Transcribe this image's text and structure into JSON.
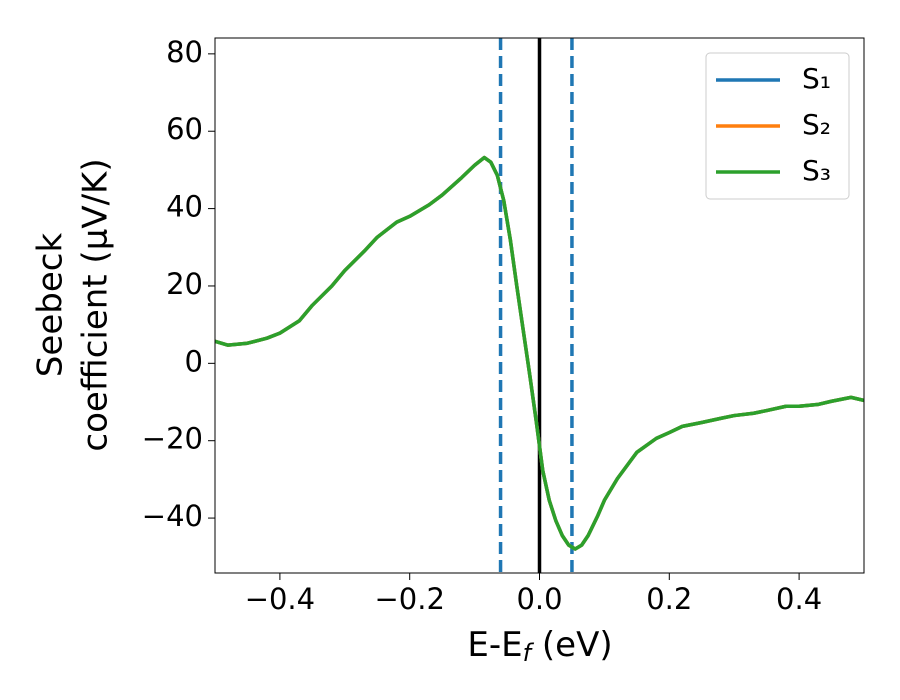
{
  "chart_data": {
    "type": "line",
    "xlabel": [
      "E-E",
      "f",
      " (eV)"
    ],
    "ylabel": [
      "Seebeck",
      "coefficient  (μV/K)"
    ],
    "x": [
      -0.5,
      -0.48,
      -0.45,
      -0.42,
      -0.4,
      -0.37,
      -0.35,
      -0.32,
      -0.3,
      -0.27,
      -0.25,
      -0.22,
      -0.2,
      -0.17,
      -0.15,
      -0.12,
      -0.1,
      -0.085,
      -0.075,
      -0.065,
      -0.055,
      -0.045,
      -0.035,
      -0.025,
      -0.015,
      -0.005,
      0.005,
      0.015,
      0.025,
      0.035,
      0.045,
      0.055,
      0.065,
      0.075,
      0.09,
      0.1,
      0.12,
      0.15,
      0.18,
      0.2,
      0.22,
      0.25,
      0.28,
      0.3,
      0.33,
      0.35,
      0.38,
      0.4,
      0.43,
      0.45,
      0.48,
      0.5
    ],
    "series": [
      {
        "name": "S₁",
        "color": "#1f77b4",
        "values": [
          5.7,
          4.7,
          5.2,
          6.5,
          7.8,
          11,
          15,
          20,
          24,
          29,
          32.6,
          36.5,
          38,
          41,
          43.5,
          48,
          51.2,
          53.2,
          52,
          48.6,
          42,
          32,
          20,
          8.5,
          -3,
          -15,
          -27.7,
          -35.4,
          -40.6,
          -44.5,
          -47,
          -48,
          -47,
          -44.5,
          -39.3,
          -35.4,
          -29.8,
          -23,
          -19.4,
          -17.9,
          -16.3,
          -15.3,
          -14.2,
          -13.5,
          -12.9,
          -12.2,
          -11.1,
          -11.1,
          -10.6,
          -9.8,
          -8.8,
          -9.6
        ]
      },
      {
        "name": "S₂",
        "color": "#ff7f0e",
        "values": [
          5.7,
          4.7,
          5.2,
          6.5,
          7.8,
          11,
          15,
          20,
          24,
          29,
          32.6,
          36.5,
          38,
          41,
          43.5,
          48,
          51.2,
          53.2,
          52,
          48.6,
          42,
          32,
          20,
          8.5,
          -3,
          -15,
          -27.7,
          -35.4,
          -40.6,
          -44.5,
          -47,
          -48,
          -47,
          -44.5,
          -39.3,
          -35.4,
          -29.8,
          -23,
          -19.4,
          -17.9,
          -16.3,
          -15.3,
          -14.2,
          -13.5,
          -12.9,
          -12.2,
          -11.1,
          -11.1,
          -10.6,
          -9.8,
          -8.8,
          -9.6
        ]
      },
      {
        "name": "S₃",
        "color": "#2ca02c",
        "values": [
          5.7,
          4.7,
          5.2,
          6.5,
          7.8,
          11,
          15,
          20,
          24,
          29,
          32.6,
          36.5,
          38,
          41,
          43.5,
          48,
          51.2,
          53.2,
          52,
          48.6,
          42,
          32,
          20,
          8.5,
          -3,
          -15,
          -27.7,
          -35.4,
          -40.6,
          -44.5,
          -47,
          -48,
          -47,
          -44.5,
          -39.3,
          -35.4,
          -29.8,
          -23,
          -19.4,
          -17.9,
          -16.3,
          -15.3,
          -14.2,
          -13.5,
          -12.9,
          -12.2,
          -11.1,
          -11.1,
          -10.6,
          -9.8,
          -8.8,
          -9.6
        ]
      }
    ],
    "vlines": [
      {
        "x": -0.06,
        "style": "dashed",
        "color": "#1f77b4"
      },
      {
        "x": 0,
        "style": "solid",
        "color": "#000000"
      },
      {
        "x": 0.05,
        "style": "dashed",
        "color": "#1f77b4"
      }
    ],
    "xlim": [
      -0.5,
      0.5
    ],
    "xticks": [
      {
        "value": -0.4,
        "label": "−0.4"
      },
      {
        "value": -0.2,
        "label": "−0.2"
      },
      {
        "value": 0,
        "label": "0.0"
      },
      0.2,
      0.4
    ],
    "ylim": [
      -54.2,
      84.1
    ],
    "yticks": [
      {
        "value": -40,
        "label": "−40"
      },
      {
        "value": -20,
        "label": "−20"
      },
      0,
      20,
      40,
      60,
      80
    ],
    "legend": "upper right"
  }
}
